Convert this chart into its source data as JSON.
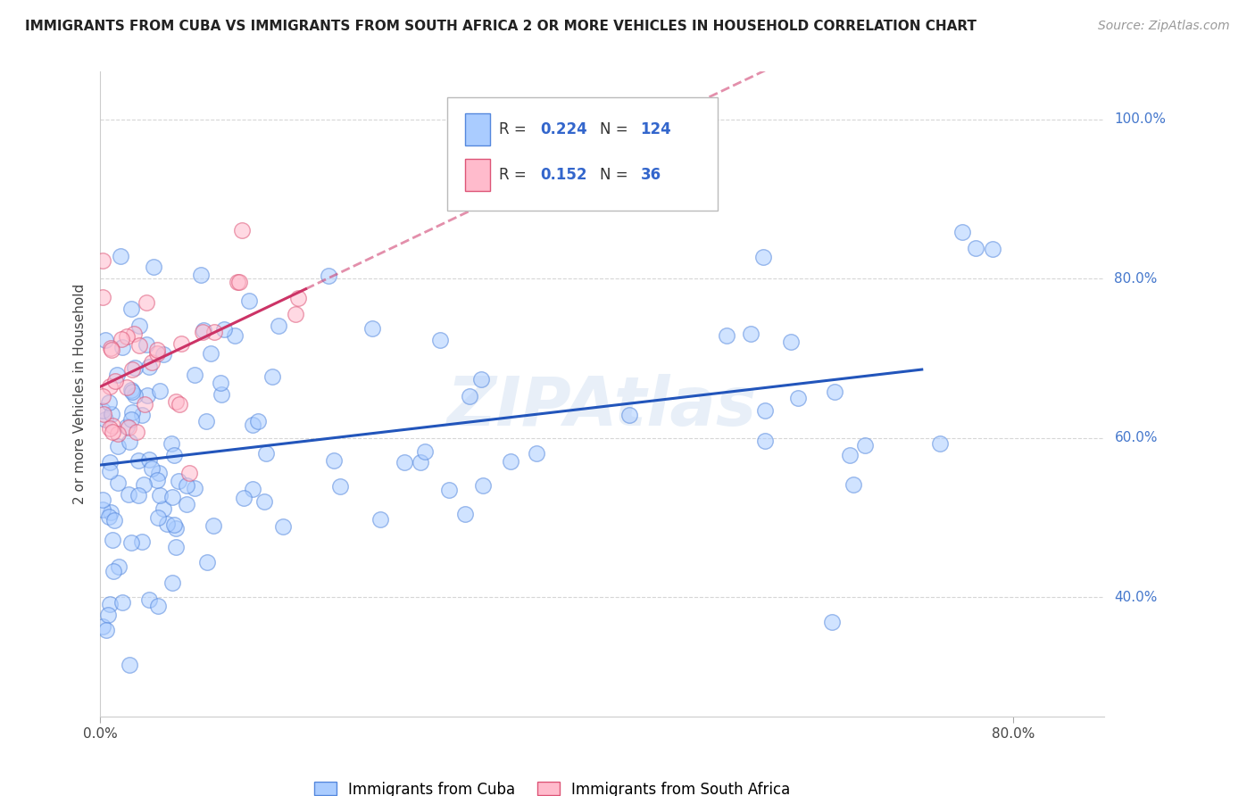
{
  "title": "IMMIGRANTS FROM CUBA VS IMMIGRANTS FROM SOUTH AFRICA 2 OR MORE VEHICLES IN HOUSEHOLD CORRELATION CHART",
  "source": "Source: ZipAtlas.com",
  "ylabel": "2 or more Vehicles in Household",
  "xlim": [
    0.0,
    0.88
  ],
  "ylim": [
    0.25,
    1.06
  ],
  "xtick_positions": [
    0.0,
    0.8
  ],
  "xticklabels": [
    "0.0%",
    "80.0%"
  ],
  "ytick_positions": [
    0.4,
    0.6,
    0.8,
    1.0
  ],
  "yticklabels": [
    "40.0%",
    "60.0%",
    "80.0%",
    "100.0%"
  ],
  "cuba_R": 0.224,
  "cuba_N": 124,
  "sa_R": 0.152,
  "sa_N": 36,
  "cuba_color": "#aaccff",
  "cuba_edge_color": "#5588dd",
  "cuba_line_color": "#2255bb",
  "sa_color": "#ffbbcc",
  "sa_edge_color": "#dd5577",
  "sa_line_color": "#cc3366",
  "watermark": "ZIPAtlas",
  "title_fontsize": 11,
  "source_fontsize": 10,
  "legend_label_cuba": "Immigrants from Cuba",
  "legend_label_sa": "Immigrants from South Africa"
}
